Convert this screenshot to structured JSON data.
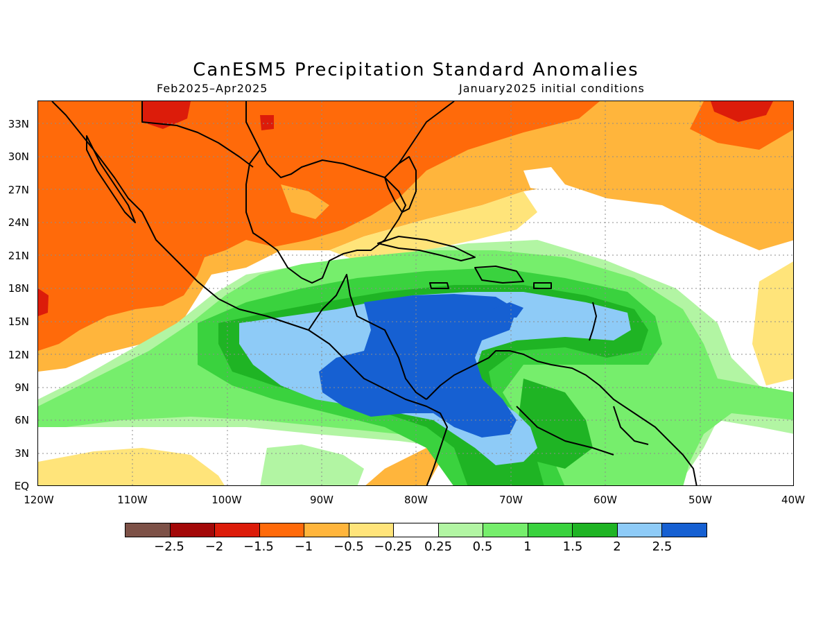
{
  "title": "CanESM5 Precipitation Standard Anomalies",
  "period": "Feb2025–Apr2025",
  "init": "January2025 initial conditions",
  "lat_labels": [
    "33N",
    "30N",
    "27N",
    "24N",
    "21N",
    "18N",
    "15N",
    "12N",
    "9N",
    "6N",
    "3N",
    "EQ"
  ],
  "lon_labels": [
    "120W",
    "110W",
    "100W",
    "90W",
    "80W",
    "70W",
    "60W",
    "50W",
    "40W"
  ],
  "colorbar": {
    "colors": [
      "#7d5147",
      "#a30808",
      "#dc1c0a",
      "#ff6a0a",
      "#ffb53c",
      "#ffe47a",
      "#ffffff",
      "#b2f5a3",
      "#76ee6c",
      "#3ad23e",
      "#1fb424",
      "#8ecbf7",
      "#1660d2"
    ],
    "labels": [
      "−2.5",
      "−2",
      "−1.5",
      "−1",
      "−0.5",
      "−0.25",
      "0.25",
      "0.5",
      "1",
      "1.5",
      "2",
      "2.5"
    ]
  },
  "map_colors": {
    "strong_dry": "#dc1c0a",
    "dry": "#ff6a0a",
    "mod_dry": "#ffb53c",
    "weak_dry": "#ffe47a",
    "neutral": "#ffffff",
    "weak_wet": "#b2f5a3",
    "wet": "#76ee6c",
    "mod_wet": "#3ad23e",
    "strong_wet": "#1fb424",
    "very_wet": "#8ecbf7",
    "extreme_wet": "#1660d2",
    "coastline": "#000000",
    "grid": "#8c8c8c"
  }
}
